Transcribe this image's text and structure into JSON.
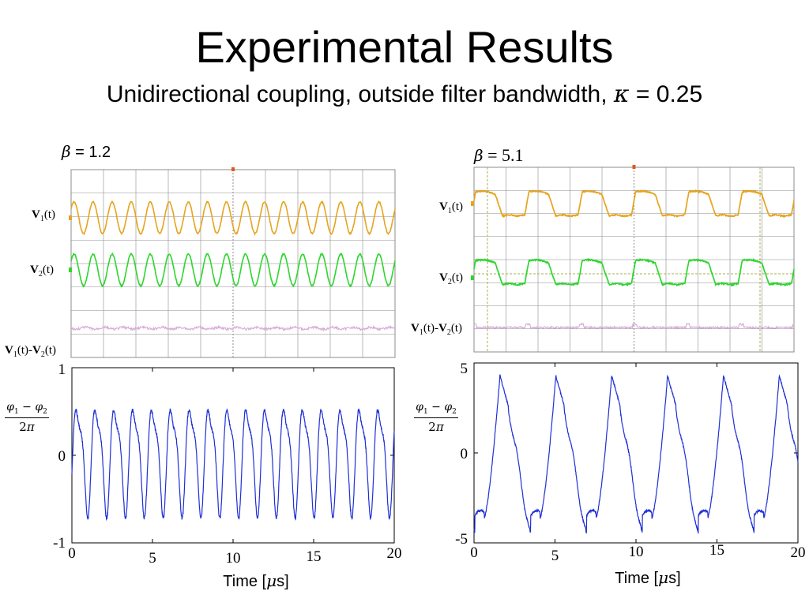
{
  "slide": {
    "title": "Experimental Results",
    "subtitle_text": "Unidirectional coupling, outside filter bandwidth, ",
    "subtitle_kappa_symbol": "κ",
    "subtitle_kappa_value": " = 0.25"
  },
  "colors": {
    "v1_trace": "#e6a41e",
    "v2_trace": "#2ed62e",
    "diff_trace": "#d8a8d8",
    "phase_line": "#1f2fd6",
    "grid": "#8c8c8c",
    "marker": "#e05a1a"
  },
  "panels": {
    "left": {
      "beta_symbol": "β",
      "beta_value": " = 1.2",
      "labels": {
        "v1": "V",
        "v1_sub": "1",
        "v1_arg": "(t)",
        "v2": "V",
        "v2_sub": "2",
        "v2_arg": "(t)",
        "diff_a": "V",
        "diff_a_sub": "1",
        "diff_mid": "(t)-",
        "diff_b": "V",
        "diff_b_sub": "2",
        "diff_arg": "(t)"
      },
      "phase_label": {
        "phi1": "φ",
        "sub1": "1",
        "minus": " − ",
        "phi2": "φ",
        "sub2": "2",
        "den_num": "2",
        "den_pi": "π"
      },
      "xlabel_text": "Time [",
      "xlabel_mu": "μ",
      "xlabel_unit": "s]"
    },
    "right": {
      "beta_symbol": "β",
      "beta_value": " = 5.1",
      "labels": {
        "v1": "V",
        "v1_sub": "1",
        "v1_arg": "(t)",
        "v2": "V",
        "v2_sub": "2",
        "v2_arg": "(t)",
        "diff_a": "V",
        "diff_a_sub": "1",
        "diff_mid": "(t)-",
        "diff_b": "V",
        "diff_b_sub": "2",
        "diff_arg": "(t)"
      },
      "phase_label": {
        "phi1": "φ",
        "sub1": "1",
        "minus": " − ",
        "phi2": "φ",
        "sub2": "2",
        "den_num": "2",
        "den_pi": "π"
      },
      "xlabel_text": "Time [",
      "xlabel_mu": "μ",
      "xlabel_unit": "s]"
    }
  },
  "chart_data": [
    {
      "type": "line",
      "panel": "left-scope",
      "series": [
        {
          "name": "V1(t)",
          "shape": "sine",
          "cycles": 17
        },
        {
          "name": "V2(t)",
          "shape": "sine",
          "cycles": 17
        },
        {
          "name": "V1(t)-V2(t)",
          "shape": "flat-noise"
        }
      ],
      "grid": true
    },
    {
      "type": "line",
      "panel": "left-phase",
      "xlim": [
        0,
        20
      ],
      "ylim": [
        -1,
        1
      ],
      "xticks": [
        "0",
        "5",
        "10",
        "15",
        "20"
      ],
      "yticks": [
        "1",
        "0",
        "-1"
      ],
      "series": [
        {
          "name": "(φ1 − φ2)/2π",
          "period_us": 1.17,
          "amplitude": 0.7,
          "offset": 0.0
        }
      ]
    },
    {
      "type": "line",
      "panel": "right-scope",
      "series": [
        {
          "name": "V1(t)",
          "shape": "square-ish",
          "cycles": 6
        },
        {
          "name": "V2(t)",
          "shape": "square-ish",
          "cycles": 6
        },
        {
          "name": "V1(t)-V2(t)",
          "shape": "flat-noise"
        }
      ],
      "grid": true
    },
    {
      "type": "line",
      "panel": "right-phase",
      "xlim": [
        0,
        20
      ],
      "ylim": [
        -5,
        5
      ],
      "xticks": [
        "0",
        "5",
        "10",
        "15",
        "20"
      ],
      "yticks": [
        "5",
        "0",
        "-5"
      ],
      "series": [
        {
          "name": "(φ1 − φ2)/2π",
          "period_us": 3.45,
          "peak": 4.3,
          "trough": -3.6,
          "phase_us": 1.6
        }
      ]
    }
  ]
}
